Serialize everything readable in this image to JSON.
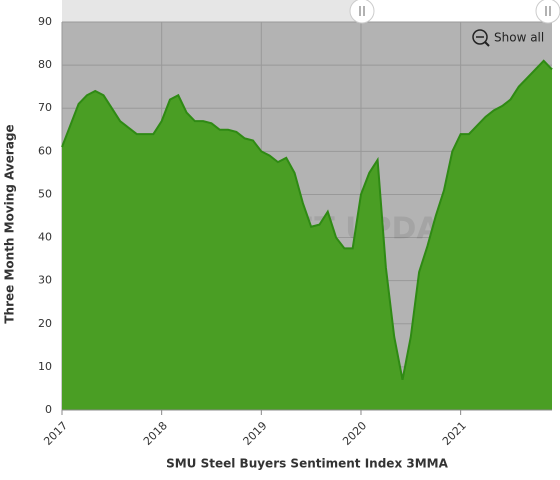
{
  "chart_data": {
    "type": "area",
    "x_label": "SMU Steel Buyers Sentiment Index 3MMA",
    "y_label": "Three Month Moving Average",
    "watermark": "STEEL MARKET UPDATE",
    "button": "Show all",
    "color": "#4a9e24",
    "line_color": "#2f8a14",
    "background": "#b3b3b3",
    "grid": true,
    "categories": [
      "2017",
      null,
      null,
      null,
      null,
      null,
      null,
      null,
      null,
      null,
      null,
      null,
      "2018",
      null,
      null,
      null,
      null,
      null,
      null,
      null,
      null,
      null,
      null,
      null,
      "2019",
      null,
      null,
      null,
      null,
      null,
      null,
      null,
      null,
      null,
      null,
      null,
      "2020",
      null,
      null,
      null,
      null,
      null,
      null,
      null,
      null,
      null,
      null,
      null,
      "2021",
      null,
      null,
      null,
      null,
      null,
      null,
      null,
      null,
      null,
      null,
      null
    ],
    "values": [
      61,
      66,
      71,
      73,
      74,
      73,
      70,
      67,
      65.5,
      64,
      64,
      64,
      67,
      72,
      73,
      69,
      67,
      67,
      66.5,
      65,
      65,
      64.5,
      63,
      62.5,
      60,
      59,
      57.5,
      58.5,
      55,
      48,
      42.5,
      43,
      46,
      40,
      37.5,
      37.5,
      50,
      55,
      58,
      33,
      17,
      7,
      17,
      32,
      38,
      45,
      51,
      60,
      64,
      64,
      66,
      68,
      69.5,
      70.5,
      72,
      75,
      77,
      79,
      81,
      79
    ],
    "ylim": [
      0,
      90
    ],
    "yticks": [
      0,
      10,
      20,
      30,
      40,
      50,
      60,
      70,
      80,
      90
    ]
  }
}
